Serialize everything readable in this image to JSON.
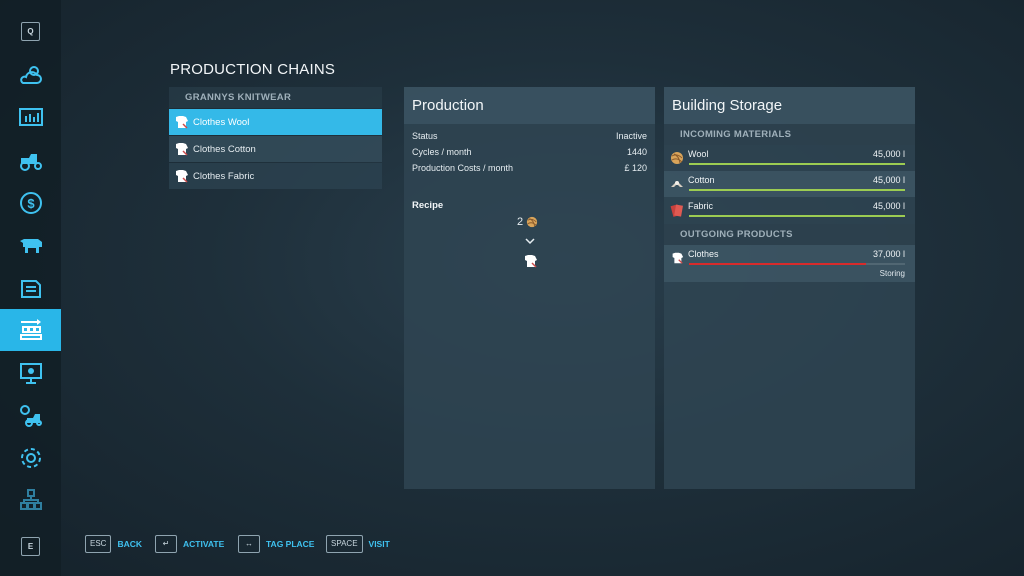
{
  "sidebar": {
    "top_key": "Q",
    "bottom_key": "E",
    "items": [
      {
        "icon": "weather-icon"
      },
      {
        "icon": "stats-icon"
      },
      {
        "icon": "vehicles-icon"
      },
      {
        "icon": "finances-icon"
      },
      {
        "icon": "animals-icon"
      },
      {
        "icon": "contracts-icon"
      },
      {
        "icon": "production-icon",
        "active": true
      },
      {
        "icon": "tutorial-icon"
      },
      {
        "icon": "garage-icon"
      },
      {
        "icon": "settings-icon"
      },
      {
        "icon": "multiplayer-icon"
      }
    ]
  },
  "page_title": "PRODUCTION CHAINS",
  "chains": {
    "group": "GRANNYS KNITWEAR",
    "items": [
      {
        "label": "Clothes Wool",
        "selected": true
      },
      {
        "label": "Clothes Cotton",
        "selected": false
      },
      {
        "label": "Clothes Fabric",
        "selected": false
      }
    ]
  },
  "production": {
    "title": "Production",
    "rows": [
      {
        "label": "Status",
        "value": "Inactive"
      },
      {
        "label": "Cycles / month",
        "value": "1440"
      },
      {
        "label": "Production Costs / month",
        "value": "£ 120"
      }
    ],
    "recipe_title": "Recipe",
    "recipe_input_amount": "2",
    "recipe_input_icon": "wool-icon",
    "recipe_output_icon": "clothes-icon"
  },
  "storage": {
    "title": "Building Storage",
    "incoming_title": "INCOMING MATERIALS",
    "incoming": [
      {
        "label": "Wool",
        "amount": "45,000 l",
        "fill": 1.0,
        "color": "#9ccc52",
        "icon": "wool-icon"
      },
      {
        "label": "Cotton",
        "amount": "45,000 l",
        "fill": 1.0,
        "color": "#9ccc52",
        "icon": "cotton-icon"
      },
      {
        "label": "Fabric",
        "amount": "45,000 l",
        "fill": 1.0,
        "color": "#9ccc52",
        "icon": "fabric-icon"
      }
    ],
    "outgoing_title": "OUTGOING PRODUCTS",
    "outgoing": [
      {
        "label": "Clothes",
        "amount": "37,000 l",
        "fill": 0.82,
        "color": "#d92b2b",
        "status": "Storing",
        "icon": "clothes-icon"
      }
    ]
  },
  "hints": [
    {
      "key": "ESC",
      "label": "BACK"
    },
    {
      "key": "↵",
      "label": "ACTIVATE"
    },
    {
      "key": "↔",
      "label": "TAG PLACE"
    },
    {
      "key": "SPACE",
      "label": "VISIT"
    }
  ],
  "colors": {
    "accent": "#29b6e8",
    "fill_ok": "#9ccc52",
    "fill_alert": "#d92b2b"
  }
}
